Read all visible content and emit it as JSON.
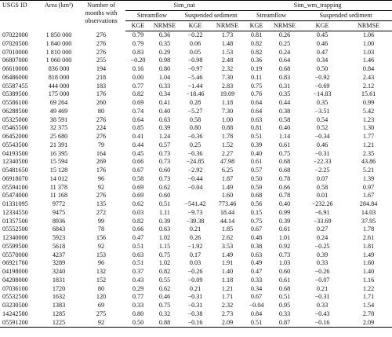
{
  "table": {
    "header": {
      "id": "USGS ID",
      "area": "Area (km²)",
      "months": "Number of months with observations",
      "groups": [
        "Sim_nat",
        "Sim_wm_trapping"
      ],
      "subgroups": [
        "Streamflow",
        "Suspended sediment"
      ],
      "metrics": [
        "KGE",
        "NRMSE"
      ]
    },
    "rows": [
      [
        "07022000",
        "1 850 000",
        "276",
        "0.79",
        "0.36",
        "−0.22",
        "1.73",
        "0.81",
        "0.26",
        "0.45",
        "1.06"
      ],
      [
        "07020500",
        "1 840 000",
        "276",
        "0.79",
        "0.35",
        "0.06",
        "1.48",
        "0.82",
        "0.25",
        "0.46",
        "1.00"
      ],
      [
        "07010000",
        "1 810 000",
        "276",
        "0.83",
        "0.29",
        "0.05",
        "1.53",
        "0.82",
        "0.24",
        "0.47",
        "1.03"
      ],
      [
        "06807000",
        "1 060 000",
        "255",
        "−0.20",
        "0.98",
        "−0.98",
        "2.48",
        "0.36",
        "0.64",
        "0.34",
        "1.46"
      ],
      [
        "06610000",
        "836 000",
        "194",
        "0.16",
        "0.80",
        "−0.97",
        "2.32",
        "0.19",
        "0.68",
        "0.50",
        "0.84"
      ],
      [
        "06486000",
        "818 000",
        "218",
        "0.00",
        "1.04",
        "−5.46",
        "7.30",
        "0.11",
        "0.83",
        "−0.92",
        "2.43"
      ],
      [
        "05587455",
        "444 000",
        "183",
        "0.77",
        "0.33",
        "−1.44",
        "2.83",
        "0.75",
        "0.31",
        "−0.69",
        "2.12"
      ],
      [
        "05389500",
        "175 000",
        "176",
        "0.82",
        "0.34",
        "−18.46",
        "19.09",
        "0.76",
        "0.35",
        "−14.83",
        "15.61"
      ],
      [
        "05586100",
        "69 264",
        "260",
        "0.69",
        "0.41",
        "0.28",
        "1.18",
        "0.64",
        "0.44",
        "0.35",
        "0.99"
      ],
      [
        "06288500",
        "49 469",
        "80",
        "0.74",
        "0.40",
        "−5.27",
        "7.30",
        "0.64",
        "0.38",
        "−3.51",
        "5.42"
      ],
      [
        "05325000",
        "38 591",
        "276",
        "0.64",
        "0.63",
        "0.58",
        "1.00",
        "0.63",
        "0.58",
        "0.54",
        "1.23"
      ],
      [
        "05465500",
        "32 375",
        "224",
        "0.85",
        "0.39",
        "0.80",
        "0.88",
        "0.81",
        "0.40",
        "0.52",
        "1.30"
      ],
      [
        "06452000",
        "25 680",
        "276",
        "0.41",
        "1.24",
        "−0.36",
        "1.78",
        "0.51",
        "1.14",
        "−0.34",
        "1.77"
      ],
      [
        "05543500",
        "21 391",
        "79",
        "0.44",
        "0.57",
        "0.25",
        "1.52",
        "0.39",
        "0.61",
        "0.46",
        "1.21"
      ],
      [
        "04193500",
        "16 395",
        "164",
        "0.45",
        "0.73",
        "−0.36",
        "2.27",
        "0.40",
        "0.75",
        "−0.31",
        "2.35"
      ],
      [
        "12340500",
        "15 594",
        "269",
        "0.66",
        "0.73",
        "−24.85",
        "47.98",
        "0.61",
        "0.68",
        "−22.33",
        "43.86"
      ],
      [
        "05481650",
        "15 128",
        "176",
        "0.67",
        "0.60",
        "−2.92",
        "6.25",
        "0.57",
        "0.68",
        "−2.25",
        "5.21"
      ],
      [
        "06918070",
        "14 012",
        "96",
        "0.58",
        "0.73",
        "−0.44",
        "1.87",
        "0.50",
        "0.78",
        "0.07",
        "1.39"
      ],
      [
        "05594100",
        "11 378",
        "92",
        "0.69",
        "0.62",
        "−0.04",
        "1.49",
        "0.59",
        "0.66",
        "0.58",
        "0.97"
      ],
      [
        "05474000",
        "11 168",
        "276",
        "0.69",
        "0.60",
        null,
        "1.60",
        "0.68",
        "0.78",
        "0.01",
        "1.67"
      ],
      [
        "01331095",
        "9772",
        "135",
        "0.62",
        "0.51",
        "−541.42",
        "773.46",
        "0.56",
        "0.40",
        "−232.26",
        "284.84"
      ],
      [
        "12334550",
        "9475",
        "272",
        "0.03",
        "1.11",
        "−9.73",
        "18.44",
        "0.15",
        "0.99",
        "−6.91",
        "14.03"
      ],
      [
        "01357500",
        "8936",
        "99",
        "0.82",
        "0.39",
        "−39.38",
        "44.14",
        "0.75",
        "0.39",
        "−33.69",
        "37.95"
      ],
      [
        "05552500",
        "6843",
        "78",
        "0.66",
        "0.63",
        "0.21",
        "1.85",
        "0.67",
        "0.61",
        "0.27",
        "1.78"
      ],
      [
        "12340000",
        "5923",
        "156",
        "0.47",
        "1.02",
        "0.26",
        "2.62",
        "0.48",
        "1.01",
        "0.24",
        "2.61"
      ],
      [
        "05599500",
        "5618",
        "92",
        "0.51",
        "1.15",
        "−1.92",
        "3.53",
        "0.38",
        "0.92",
        "−0.25",
        "1.81"
      ],
      [
        "05570000",
        "4237",
        "153",
        "0.63",
        "0.75",
        "0.17",
        "1.49",
        "0.63",
        "0.73",
        "0.39",
        "1.49"
      ],
      [
        "06921760",
        "3289",
        "96",
        "0.51",
        "1.02",
        "0.03",
        "1.91",
        "0.49",
        "1.03",
        "0.33",
        "1.60"
      ],
      [
        "04198000",
        "3240",
        "132",
        "0.37",
        "0.82",
        "−0.26",
        "1.40",
        "0.47",
        "0.60",
        "−0.26",
        "1.40"
      ],
      [
        "04208000",
        "1831",
        "152",
        "0.43",
        "0.55",
        "−0.09",
        "1.18",
        "0.33",
        "0.61",
        "−0.07",
        "1.16"
      ],
      [
        "07036100",
        "1720",
        "80",
        "0.29",
        "0.62",
        "0.21",
        "1.21",
        "0.34",
        "0.68",
        "0.21",
        "1.22"
      ],
      [
        "05532500",
        "1632",
        "120",
        "0.77",
        "0.46",
        "−0.31",
        "1.71",
        "0.67",
        "0.51",
        "−0.31",
        "1.71"
      ],
      [
        "03230500",
        "1383",
        "69",
        "0.33",
        "0.75",
        "−0.31",
        "2.32",
        "−0.04",
        "0.95",
        "0.33",
        "1.54"
      ],
      [
        "14242580",
        "1285",
        "275",
        "0.80",
        "0.32",
        "−0.38",
        "2.73",
        "0.84",
        "0.33",
        "−0.43",
        "2.78"
      ],
      [
        "05591200",
        "1225",
        "92",
        "0.50",
        "0.88",
        "−0.16",
        "2.09",
        "0.51",
        "0.87",
        "−0.16",
        "2.09"
      ]
    ]
  }
}
